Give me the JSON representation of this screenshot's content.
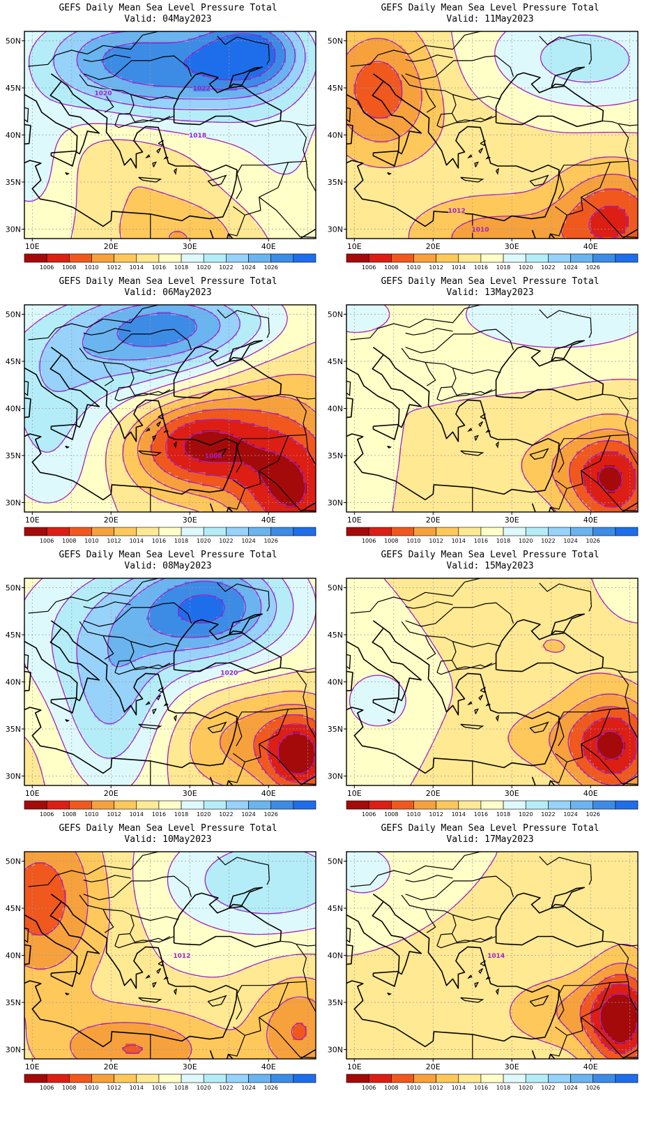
{
  "colors": {
    "1006": "#a50a0a",
    "1008": "#dc1e14",
    "1010": "#f0581e",
    "1012": "#f7a13c",
    "1014": "#ffc85a",
    "1016": "#ffe993",
    "1018": "#ffffc8",
    "1020": "#def9fb",
    "1022": "#b4edf8",
    "1024": "#96d2fa",
    "1026": "#6ab4f0",
    "1028": "#3c8ce6",
    "1030": "#1e6eeb",
    "contour": "#a020c8",
    "grid": "#9a9a9a",
    "coast": "#000000"
  },
  "colorbar": {
    "labels": [
      "1006",
      "1008",
      "1010",
      "1012",
      "1014",
      "1016",
      "1018",
      "1020",
      "1022",
      "1024",
      "1026"
    ]
  },
  "axes": {
    "lon_labels": [
      "10E",
      "20E",
      "30E",
      "40E"
    ],
    "lat_labels": [
      "50N",
      "45N",
      "40N",
      "35N",
      "30N"
    ],
    "lon_values": [
      10,
      20,
      30,
      40
    ],
    "lat_values": [
      50,
      45,
      40,
      35,
      30
    ],
    "lon_range": [
      9,
      46
    ],
    "lat_range": [
      29,
      51
    ]
  },
  "map_data": {
    "type": "contour_map",
    "variable": "Mean Sea Level Pressure",
    "panels": [
      {
        "title": "GEFS Daily Mean Sea Level Pressure Total",
        "valid": "Valid: 04May2023",
        "contour_labels": [
          {
            "text": "1020",
            "lon": 19.0,
            "lat": 44.5
          },
          {
            "text": "1022",
            "lon": 31.5,
            "lat": 45.0
          },
          {
            "text": "1018",
            "lon": 31.0,
            "lat": 40.0
          }
        ],
        "centers": [
          {
            "lon": 38,
            "lat": 49,
            "p": 1027,
            "sx": 5,
            "sy": 3
          },
          {
            "lon": 22,
            "lat": 49,
            "p": 1024,
            "sx": 9,
            "sy": 3.5
          },
          {
            "lon": 28,
            "lat": 45,
            "p": 1022,
            "sx": 10,
            "sy": 3.5
          },
          {
            "lon": 10,
            "lat": 37,
            "p": 1019,
            "sx": 4,
            "sy": 5
          },
          {
            "lon": 22,
            "lat": 37,
            "p": 1014,
            "sx": 6,
            "sy": 4
          },
          {
            "lon": 29,
            "lat": 29,
            "p": 1012,
            "sx": 6,
            "sy": 3
          },
          {
            "lon": 42,
            "lat": 37,
            "p": 1018,
            "sx": 6,
            "sy": 6
          }
        ]
      },
      {
        "title": "GEFS Daily Mean Sea Level Pressure Total",
        "valid": "Valid: 06May2023",
        "contour_labels": [
          {
            "text": "1008",
            "lon": 33.0,
            "lat": 35.0
          }
        ],
        "centers": [
          {
            "lon": 28,
            "lat": 49,
            "p": 1025,
            "sx": 9,
            "sy": 3
          },
          {
            "lon": 20,
            "lat": 45,
            "p": 1021,
            "sx": 12,
            "sy": 4
          },
          {
            "lon": 12,
            "lat": 37,
            "p": 1020,
            "sx": 5,
            "sy": 6
          },
          {
            "lon": 31,
            "lat": 36,
            "p": 1006,
            "sx": 6,
            "sy": 3.5
          },
          {
            "lon": 43,
            "lat": 31,
            "p": 1006,
            "sx": 5,
            "sy": 5
          },
          {
            "lon": 40,
            "lat": 42,
            "p": 1013,
            "sx": 8,
            "sy": 5
          }
        ]
      },
      {
        "title": "GEFS Daily Mean Sea Level Pressure Total",
        "valid": "Valid: 08May2023",
        "contour_labels": [
          {
            "text": "1020",
            "lon": 35.0,
            "lat": 41.0
          }
        ],
        "centers": [
          {
            "lon": 33,
            "lat": 48,
            "p": 1027,
            "sx": 7,
            "sy": 4
          },
          {
            "lon": 20,
            "lat": 45,
            "p": 1021,
            "sx": 9,
            "sy": 6
          },
          {
            "lon": 20,
            "lat": 36,
            "p": 1021,
            "sx": 5,
            "sy": 6
          },
          {
            "lon": 11,
            "lat": 34,
            "p": 1015,
            "sx": 4,
            "sy": 6
          },
          {
            "lon": 38,
            "lat": 34,
            "p": 1011,
            "sx": 8,
            "sy": 4
          },
          {
            "lon": 44,
            "lat": 32,
            "p": 1007,
            "sx": 3,
            "sy": 3
          }
        ]
      },
      {
        "title": "GEFS Daily Mean Sea Level Pressure Total",
        "valid": "Valid: 10May2023",
        "contour_labels": [
          {
            "text": "1012",
            "lon": 29.0,
            "lat": 40.0
          }
        ],
        "centers": [
          {
            "lon": 11,
            "lat": 46,
            "p": 1009,
            "sx": 6,
            "sy": 7
          },
          {
            "lon": 40,
            "lat": 48,
            "p": 1022,
            "sx": 9,
            "sy": 4
          },
          {
            "lon": 31,
            "lat": 42,
            "p": 1016,
            "sx": 8,
            "sy": 5
          },
          {
            "lon": 23,
            "lat": 30,
            "p": 1010,
            "sx": 8,
            "sy": 3
          },
          {
            "lon": 44,
            "lat": 32,
            "p": 1010,
            "sx": 4,
            "sy": 4
          }
        ]
      },
      {
        "title": "GEFS Daily Mean Sea Level Pressure Total",
        "valid": "Valid: 11May2023",
        "contour_labels": [
          {
            "text": "1012",
            "lon": 23.0,
            "lat": 32.0
          },
          {
            "text": "1010",
            "lon": 26.0,
            "lat": 30.0
          }
        ],
        "centers": [
          {
            "lon": 13,
            "lat": 45,
            "p": 1009,
            "sx": 5,
            "sy": 5
          },
          {
            "lon": 39,
            "lat": 48,
            "p": 1021,
            "sx": 9,
            "sy": 4
          },
          {
            "lon": 43,
            "lat": 31,
            "p": 1008,
            "sx": 5,
            "sy": 4
          },
          {
            "lon": 28,
            "lat": 29,
            "p": 1011,
            "sx": 8,
            "sy": 3
          },
          {
            "lon": 26,
            "lat": 40,
            "p": 1015,
            "sx": 9,
            "sy": 5
          }
        ]
      },
      {
        "title": "GEFS Daily Mean Sea Level Pressure Total",
        "valid": "Valid: 13May2023",
        "contour_labels": [],
        "centers": [
          {
            "lon": 36,
            "lat": 50,
            "p": 1020,
            "sx": 10,
            "sy": 3
          },
          {
            "lon": 10,
            "lat": 50,
            "p": 1019,
            "sx": 4,
            "sy": 2
          },
          {
            "lon": 25,
            "lat": 40,
            "p": 1016,
            "sx": 12,
            "sy": 8
          },
          {
            "lon": 43,
            "lat": 32,
            "p": 1007,
            "sx": 4,
            "sy": 4
          },
          {
            "lon": 37,
            "lat": 34,
            "p": 1013,
            "sx": 6,
            "sy": 3
          },
          {
            "lon": 9,
            "lat": 37,
            "p": 1018,
            "sx": 2,
            "sy": 3
          }
        ]
      },
      {
        "title": "GEFS Daily Mean Sea Level Pressure Total",
        "valid": "Valid: 15May2023",
        "contour_labels": [],
        "centers": [
          {
            "lon": 13,
            "lat": 38,
            "p": 1019,
            "sx": 4,
            "sy": 3
          },
          {
            "lon": 25,
            "lat": 42,
            "p": 1016,
            "sx": 12,
            "sy": 8
          },
          {
            "lon": 35,
            "lat": 44,
            "p": 1014,
            "sx": 6,
            "sy": 3
          },
          {
            "lon": 43,
            "lat": 33,
            "p": 1007,
            "sx": 4,
            "sy": 4
          },
          {
            "lon": 36,
            "lat": 34,
            "p": 1013,
            "sx": 7,
            "sy": 3
          },
          {
            "lon": 45,
            "lat": 50,
            "p": 1018,
            "sx": 2,
            "sy": 2
          }
        ]
      },
      {
        "title": "GEFS Daily Mean Sea Level Pressure Total",
        "valid": "Valid: 17May2023",
        "contour_labels": [
          {
            "text": "1014",
            "lon": 28.0,
            "lat": 40.0
          }
        ],
        "centers": [
          {
            "lon": 11,
            "lat": 49,
            "p": 1020,
            "sx": 3,
            "sy": 2
          },
          {
            "lon": 25,
            "lat": 42,
            "p": 1016,
            "sx": 12,
            "sy": 8
          },
          {
            "lon": 44,
            "lat": 33,
            "p": 1006,
            "sx": 3,
            "sy": 4
          },
          {
            "lon": 38,
            "lat": 34,
            "p": 1012,
            "sx": 7,
            "sy": 3
          },
          {
            "lon": 45,
            "lat": 45,
            "p": 1015,
            "sx": 3,
            "sy": 4
          }
        ]
      }
    ]
  }
}
